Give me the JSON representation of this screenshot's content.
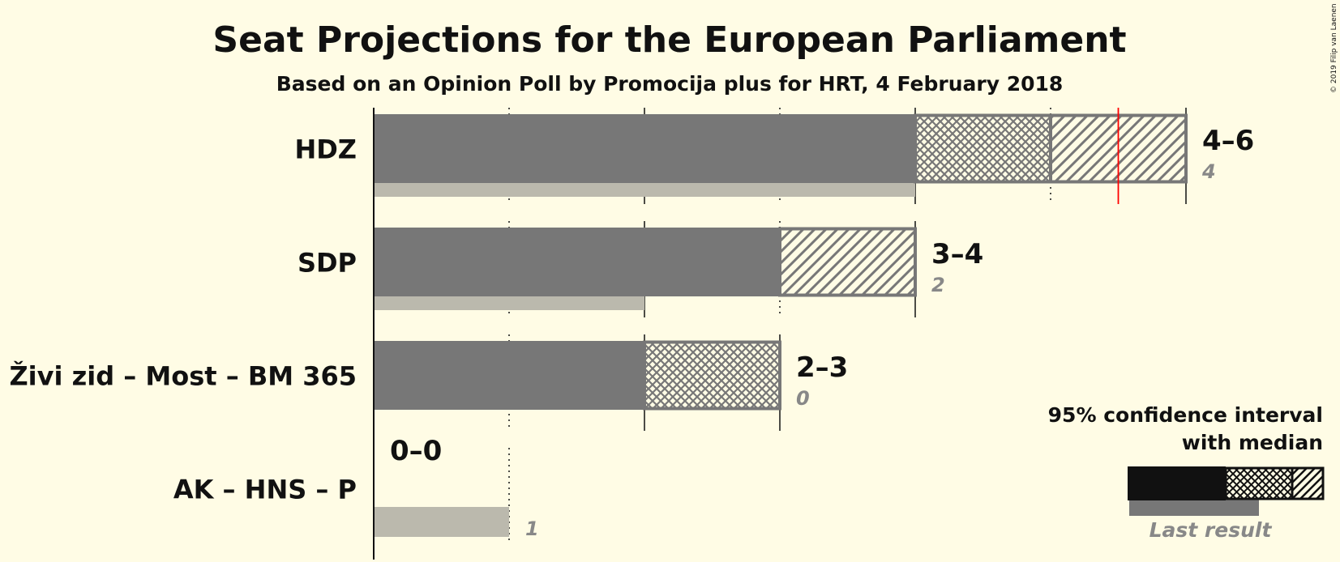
{
  "title": "Seat Projections for the European Parliament",
  "subtitle": "Based on an Opinion Poll by Promocija plus for HRT, 4 February 2018",
  "copyright": "© 2019 Filip van Laenen",
  "legend": {
    "line1": "95% confidence interval",
    "line2": "with median",
    "last_result": "Last result"
  },
  "colors": {
    "background": "#FFFCE5",
    "bar": "#777777",
    "last_result": "#BBB9AD",
    "hatch": "#777777",
    "majority_line": "#FF0000",
    "legend_bar": "#111111"
  },
  "chart_data": {
    "type": "bar",
    "orientation": "horizontal",
    "title": "Seat Projections for the European Parliament",
    "subtitle": "Based on an Opinion Poll by Promocija plus for HRT, 4 February 2018",
    "xlim": [
      0,
      6
    ],
    "majority_marker": 5.5,
    "series": [
      {
        "party": "HDZ",
        "low": 4,
        "median": 5,
        "high": 6,
        "range_label": "4–6",
        "last_result": 4,
        "last_label": "4"
      },
      {
        "party": "SDP",
        "low": 3,
        "median": 3,
        "high": 4,
        "range_label": "3–4",
        "last_result": 2,
        "last_label": "2"
      },
      {
        "party": "Živi zid – Most – BM 365",
        "low": 2,
        "median": 3,
        "high": 3,
        "range_label": "2–3",
        "last_result": 0,
        "last_label": "0"
      },
      {
        "party": "AK – HNS – P",
        "low": 0,
        "median": 0,
        "high": 0,
        "range_label": "0–0",
        "last_result": 1,
        "last_label": "1"
      }
    ]
  }
}
